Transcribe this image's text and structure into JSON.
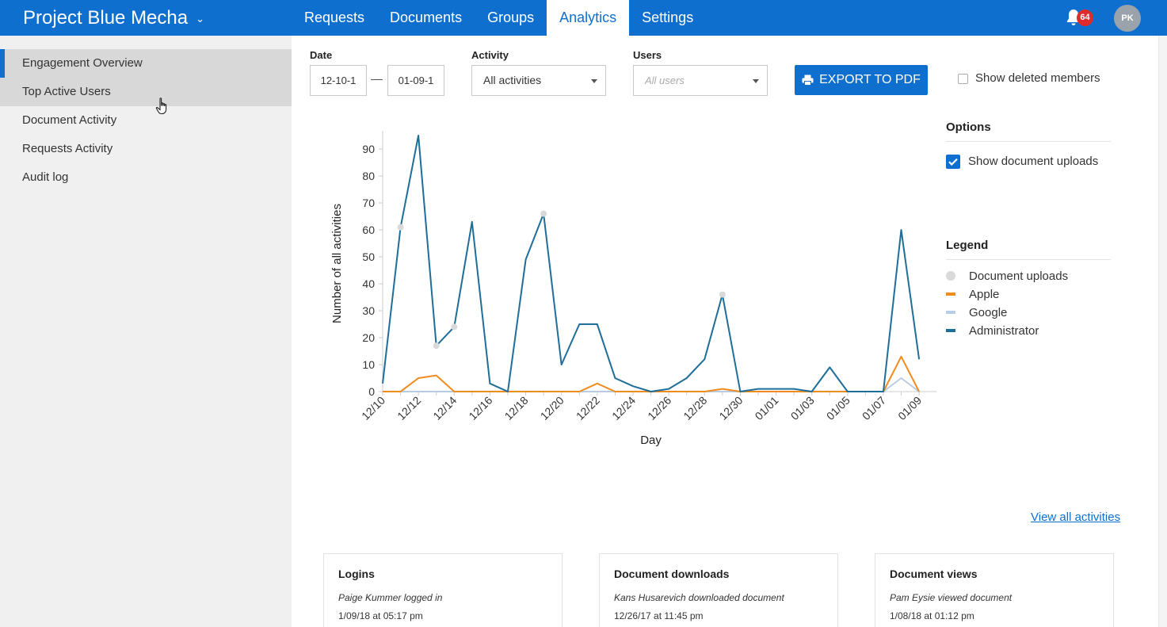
{
  "header": {
    "project_title": "Project Blue Mecha",
    "tabs": [
      {
        "label": "Requests"
      },
      {
        "label": "Documents"
      },
      {
        "label": "Groups"
      },
      {
        "label": "Analytics"
      },
      {
        "label": "Settings"
      }
    ],
    "active_tab": "Analytics",
    "notification_count": "64",
    "user_initials": "PK",
    "colors": {
      "brand": "#0f6fce",
      "badge": "#e02b2b"
    }
  },
  "sidebar": {
    "items": [
      {
        "label": "Engagement Overview"
      },
      {
        "label": "Top Active Users"
      },
      {
        "label": "Document Activity"
      },
      {
        "label": "Requests Activity"
      },
      {
        "label": "Audit log"
      }
    ],
    "active_item": "Engagement Overview"
  },
  "filters": {
    "date_label": "Date",
    "date_start": "12-10-1",
    "date_end": "01-09-1",
    "activity_label": "Activity",
    "activity_value": "All activities",
    "users_label": "Users",
    "users_placeholder": "All users",
    "export_label": "EXPORT TO PDF",
    "show_deleted_label": "Show deleted members",
    "show_deleted_checked": false
  },
  "options": {
    "title": "Options",
    "show_uploads_label": "Show document uploads",
    "show_uploads_checked": true
  },
  "legend": {
    "title": "Legend",
    "items": [
      {
        "label": "Document uploads",
        "color": "#d9d9d9",
        "shape": "circle"
      },
      {
        "label": "Apple",
        "color": "#f08c1e",
        "shape": "bar"
      },
      {
        "label": "Google",
        "color": "#b8cce4",
        "shape": "bar"
      },
      {
        "label": "Administrator",
        "color": "#1f6d99",
        "shape": "bar"
      }
    ]
  },
  "chart_data": {
    "type": "line",
    "xlabel": "Day",
    "ylabel": "Number of all activities",
    "ylim": [
      0,
      95
    ],
    "yticks": [
      0,
      10,
      20,
      30,
      40,
      50,
      60,
      70,
      80,
      90
    ],
    "categories": [
      "12/10",
      "12/11",
      "12/12",
      "12/13",
      "12/14",
      "12/15",
      "12/16",
      "12/17",
      "12/18",
      "12/19",
      "12/20",
      "12/21",
      "12/22",
      "12/23",
      "12/24",
      "12/25",
      "12/26",
      "12/27",
      "12/28",
      "12/29",
      "12/30",
      "12/31",
      "01/01",
      "01/02",
      "01/03",
      "01/04",
      "01/05",
      "01/06",
      "01/07",
      "01/08",
      "01/09"
    ],
    "tick_labels": [
      "12/10",
      "12/12",
      "12/14",
      "12/16",
      "12/18",
      "12/20",
      "12/22",
      "12/24",
      "12/26",
      "12/28",
      "12/30",
      "01/01",
      "01/03",
      "01/05",
      "01/07",
      "01/09"
    ],
    "series": [
      {
        "name": "Administrator",
        "color": "#1f6d99",
        "values": [
          3,
          61,
          95,
          17,
          24,
          63,
          3,
          0,
          49,
          66,
          10,
          25,
          25,
          5,
          2,
          0,
          1,
          5,
          12,
          36,
          0,
          1,
          1,
          1,
          0,
          9,
          0,
          0,
          0,
          60,
          12
        ]
      },
      {
        "name": "Apple",
        "color": "#f08c1e",
        "values": [
          0,
          0,
          5,
          6,
          0,
          0,
          0,
          0,
          0,
          0,
          0,
          0,
          3,
          0,
          0,
          0,
          0,
          0,
          0,
          1,
          0,
          0,
          0,
          0,
          0,
          0,
          0,
          0,
          0,
          13,
          0
        ]
      },
      {
        "name": "Google",
        "color": "#b8cce4",
        "values": [
          0,
          0,
          0,
          0,
          0,
          0,
          0,
          0,
          0,
          0,
          0,
          0,
          0,
          0,
          0,
          0,
          0,
          0,
          0,
          0,
          0,
          0,
          0,
          0,
          0,
          0,
          0,
          0,
          0,
          5,
          0
        ]
      }
    ],
    "document_uploads": [
      {
        "x": "12/11",
        "y": 61
      },
      {
        "x": "12/13",
        "y": 17
      },
      {
        "x": "12/14",
        "y": 24
      },
      {
        "x": "12/19",
        "y": 66
      },
      {
        "x": "12/29",
        "y": 36
      }
    ],
    "grid": false
  },
  "view_all_label": "View all activities",
  "cards": [
    {
      "title": "Logins",
      "text": "Paige Kummer logged in",
      "date": "1/09/18 at 05:17 pm"
    },
    {
      "title": "Document downloads",
      "text": "Kans Husarevich downloaded document",
      "date": "12/26/17 at 11:45 pm"
    },
    {
      "title": "Document views",
      "text": "Pam Eysie viewed document",
      "date": "1/08/18 at 01:12 pm"
    }
  ]
}
